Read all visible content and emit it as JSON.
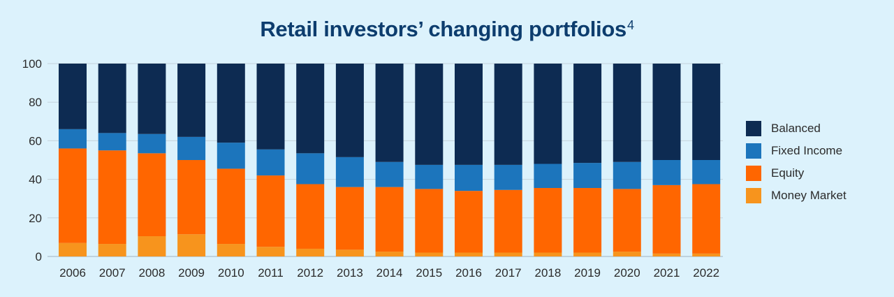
{
  "title": "Retail investors’ changing portfolios",
  "title_footnote": "4",
  "chart_data": {
    "type": "bar",
    "stacked": true,
    "title": "Retail investors’ changing portfolios",
    "xlabel": "",
    "ylabel": "",
    "ylim": [
      0,
      100
    ],
    "yticks": [
      0,
      20,
      40,
      60,
      80,
      100
    ],
    "grid": true,
    "legend_position": "right",
    "categories": [
      "2006",
      "2007",
      "2008",
      "2009",
      "2010",
      "2011",
      "2012",
      "2013",
      "2014",
      "2015",
      "2016",
      "2017",
      "2018",
      "2019",
      "2020",
      "2021",
      "2022"
    ],
    "series": [
      {
        "name": "Money Market",
        "color": "#f7941d",
        "values": [
          7,
          6.5,
          10.5,
          11.5,
          6.5,
          5,
          4,
          3.5,
          2.5,
          2,
          2,
          2,
          2,
          2,
          2.5,
          1.5,
          1.5
        ]
      },
      {
        "name": "Equity",
        "color": "#ff6600",
        "values": [
          49,
          48.5,
          43,
          38.5,
          39,
          37,
          33.5,
          32.5,
          33.5,
          33,
          32,
          32.5,
          33.5,
          33.5,
          32.5,
          35.5,
          36
        ]
      },
      {
        "name": "Fixed Income",
        "color": "#1c75bc",
        "values": [
          10,
          9,
          10,
          12,
          13.5,
          13.5,
          16,
          15.5,
          13,
          12.5,
          13.5,
          13,
          12.5,
          13,
          14,
          13,
          12.5
        ]
      },
      {
        "name": "Balanced",
        "color": "#0d2b52",
        "values": [
          34,
          36,
          36.5,
          38,
          41,
          44.5,
          46.5,
          48.5,
          51,
          52.5,
          52.5,
          52.5,
          52,
          51.5,
          51,
          50,
          50
        ]
      }
    ],
    "legend_order": [
      "Balanced",
      "Fixed Income",
      "Equity",
      "Money Market"
    ]
  }
}
